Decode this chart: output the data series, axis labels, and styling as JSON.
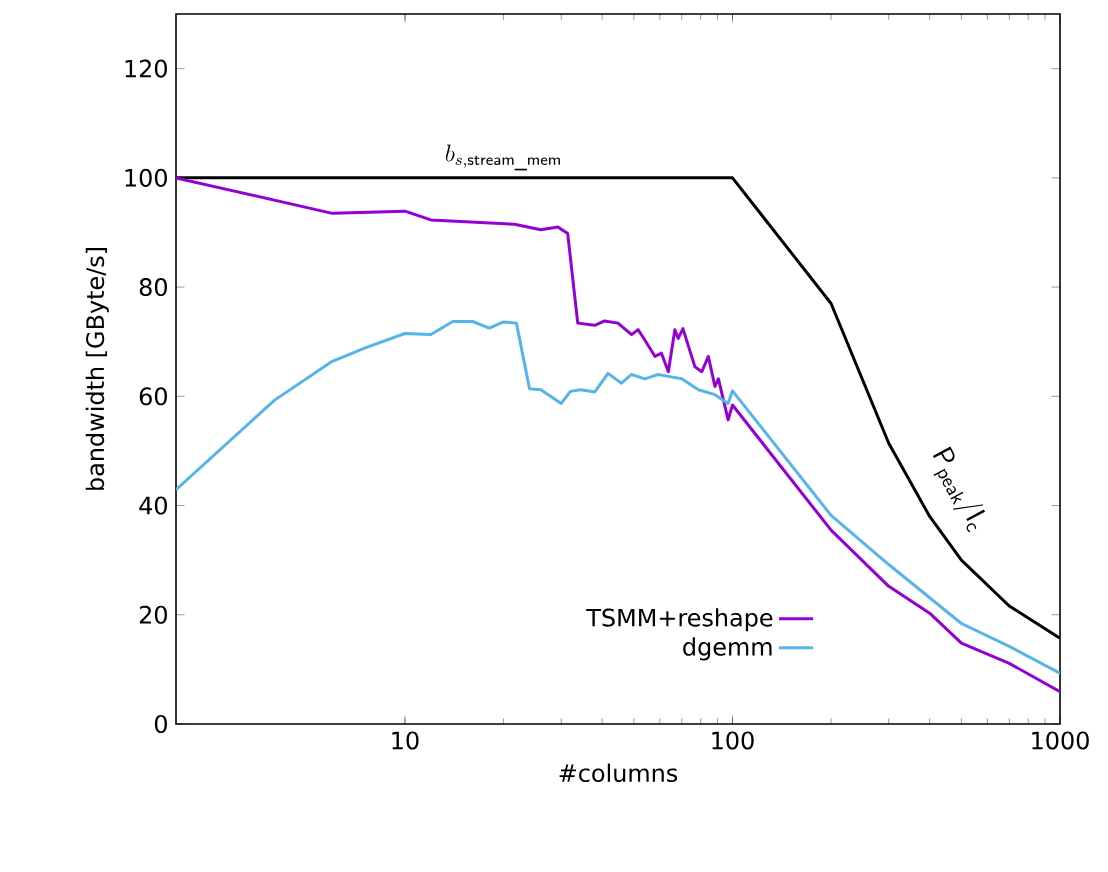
{
  "chart_data": {
    "type": "line",
    "xlabel": "#columns",
    "ylabel": "bandwidth [GByte/s]",
    "log": "x",
    "xlim": [
      2,
      1000
    ],
    "ylim": [
      0,
      130
    ],
    "xticks": [
      10,
      100,
      1000
    ],
    "yticks": [
      0,
      20,
      40,
      60,
      80,
      100,
      120
    ],
    "grid": false,
    "legend": "bottom",
    "line_style": "solid",
    "marker": "none",
    "series": [
      {
        "color": "#000000",
        "x": [
          2,
          100,
          200,
          300,
          400,
          500,
          700,
          1000
        ],
        "values": [
          100,
          100,
          77,
          51.4,
          38,
          30,
          21.6,
          15.7
        ]
      },
      {
        "name": "TSMM+reshape",
        "color": "#9400d3",
        "x": [
          2,
          6,
          10,
          12,
          21.6,
          26,
          29.3,
          31.4,
          33.7,
          38,
          40.7,
          44.7,
          49.2,
          51.5,
          54,
          58,
          60.7,
          63.7,
          66.7,
          68.3,
          70.6,
          76.8,
          80.6,
          84.4,
          88.4,
          90.6,
          97,
          100,
          200,
          300,
          400,
          500,
          700,
          1000
        ],
        "values": [
          100,
          93.5,
          93.9,
          92.3,
          91.5,
          90.5,
          91,
          89.8,
          73.4,
          73,
          73.8,
          73.4,
          71.3,
          72.2,
          70.3,
          67.3,
          67.9,
          64.5,
          72.2,
          70.6,
          72.4,
          65.4,
          64.5,
          67.3,
          61.8,
          63.2,
          55.7,
          58.4,
          35.5,
          25.2,
          20.3,
          14.8,
          11.1,
          5.9
        ]
      },
      {
        "name": "dgemm",
        "color": "#56b4e9",
        "x": [
          2,
          4,
          6,
          7.6,
          10,
          12,
          14,
          16.1,
          18.1,
          19.9,
          21.9,
          24,
          26,
          30,
          32,
          34.4,
          38,
          41.7,
          45.8,
          49.2,
          54,
          59.3,
          64.3,
          70,
          78.7,
          88.4,
          97,
          100,
          200,
          300,
          500,
          700,
          1000
        ],
        "values": [
          42.9,
          59.3,
          66.4,
          68.9,
          71.5,
          71.3,
          73.7,
          73.7,
          72.5,
          73.6,
          73.4,
          61.4,
          61.2,
          58.7,
          60.9,
          61.2,
          60.8,
          64.2,
          62.4,
          64,
          63.2,
          64,
          63.6,
          63.2,
          61.2,
          60.3,
          58.7,
          61,
          38.2,
          29.2,
          18.4,
          14.2,
          9.3
        ]
      }
    ],
    "annotations": [
      {
        "text": "b_{s,\\mathsf{stream\\_mem}}",
        "x": 20,
        "y": 100
      },
      "\\mathsf{P}_{\\mathsf{peak}}/\\mathsf{I}_{\\mathsf{c}}"
    ]
  }
}
